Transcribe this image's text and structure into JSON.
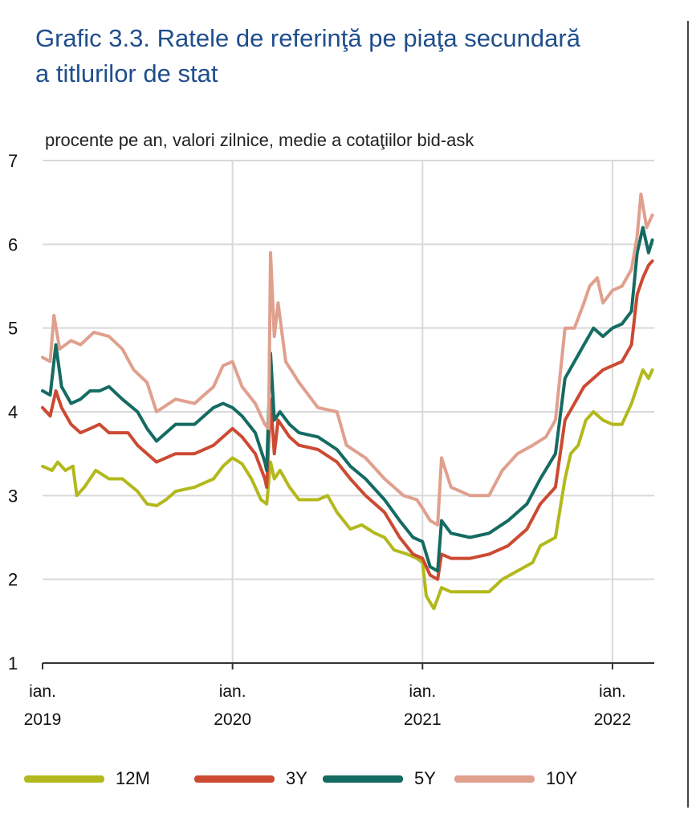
{
  "title_line1": "Grafic 3.3. Ratele de referinţă pe piaţa secundară",
  "title_line2": "a titlurilor de stat",
  "chart_data": {
    "type": "line",
    "subtitle": "procente pe an, valori zilnice, medie a cotaţiilor bid-ask",
    "ylim": [
      1,
      7
    ],
    "yticks": [
      "1",
      "2",
      "3",
      "4",
      "5",
      "6",
      "7"
    ],
    "xlim": [
      2019.0,
      2022.22
    ],
    "xticks": [
      {
        "x": 2019.0,
        "line1": "ian.",
        "line2": "2019"
      },
      {
        "x": 2020.0,
        "line1": "ian.",
        "line2": "2020"
      },
      {
        "x": 2021.0,
        "line1": "ian.",
        "line2": "2021"
      },
      {
        "x": 2022.0,
        "line1": "ian.",
        "line2": "2022"
      }
    ],
    "grid": true,
    "legend_position": "bottom",
    "series": [
      {
        "name": "12M",
        "color": "#b3b91c",
        "points": [
          [
            2019.0,
            3.35
          ],
          [
            2019.05,
            3.3
          ],
          [
            2019.08,
            3.4
          ],
          [
            2019.12,
            3.3
          ],
          [
            2019.16,
            3.35
          ],
          [
            2019.18,
            3.0
          ],
          [
            2019.22,
            3.1
          ],
          [
            2019.28,
            3.3
          ],
          [
            2019.35,
            3.2
          ],
          [
            2019.42,
            3.2
          ],
          [
            2019.5,
            3.05
          ],
          [
            2019.55,
            2.9
          ],
          [
            2019.6,
            2.88
          ],
          [
            2019.65,
            2.95
          ],
          [
            2019.7,
            3.05
          ],
          [
            2019.8,
            3.1
          ],
          [
            2019.9,
            3.2
          ],
          [
            2019.95,
            3.35
          ],
          [
            2020.0,
            3.45
          ],
          [
            2020.05,
            3.38
          ],
          [
            2020.1,
            3.2
          ],
          [
            2020.15,
            2.95
          ],
          [
            2020.18,
            2.9
          ],
          [
            2020.2,
            3.4
          ],
          [
            2020.22,
            3.2
          ],
          [
            2020.25,
            3.3
          ],
          [
            2020.3,
            3.1
          ],
          [
            2020.35,
            2.95
          ],
          [
            2020.45,
            2.95
          ],
          [
            2020.5,
            3.0
          ],
          [
            2020.55,
            2.8
          ],
          [
            2020.62,
            2.6
          ],
          [
            2020.68,
            2.65
          ],
          [
            2020.75,
            2.55
          ],
          [
            2020.8,
            2.5
          ],
          [
            2020.85,
            2.35
          ],
          [
            2020.92,
            2.3
          ],
          [
            2020.97,
            2.25
          ],
          [
            2021.0,
            2.2
          ],
          [
            2021.02,
            1.8
          ],
          [
            2021.06,
            1.65
          ],
          [
            2021.1,
            1.9
          ],
          [
            2021.15,
            1.85
          ],
          [
            2021.25,
            1.85
          ],
          [
            2021.35,
            1.85
          ],
          [
            2021.42,
            2.0
          ],
          [
            2021.5,
            2.1
          ],
          [
            2021.58,
            2.2
          ],
          [
            2021.62,
            2.4
          ],
          [
            2021.7,
            2.5
          ],
          [
            2021.75,
            3.2
          ],
          [
            2021.78,
            3.5
          ],
          [
            2021.82,
            3.6
          ],
          [
            2021.86,
            3.9
          ],
          [
            2021.9,
            4.0
          ],
          [
            2021.95,
            3.9
          ],
          [
            2022.0,
            3.85
          ],
          [
            2022.05,
            3.85
          ],
          [
            2022.1,
            4.1
          ],
          [
            2022.13,
            4.3
          ],
          [
            2022.16,
            4.5
          ],
          [
            2022.19,
            4.4
          ],
          [
            2022.21,
            4.5
          ]
        ]
      },
      {
        "name": "3Y",
        "color": "#cc4a32",
        "points": [
          [
            2019.0,
            4.05
          ],
          [
            2019.04,
            3.95
          ],
          [
            2019.07,
            4.25
          ],
          [
            2019.1,
            4.05
          ],
          [
            2019.15,
            3.85
          ],
          [
            2019.2,
            3.75
          ],
          [
            2019.25,
            3.8
          ],
          [
            2019.3,
            3.85
          ],
          [
            2019.35,
            3.75
          ],
          [
            2019.45,
            3.75
          ],
          [
            2019.5,
            3.6
          ],
          [
            2019.55,
            3.5
          ],
          [
            2019.6,
            3.4
          ],
          [
            2019.7,
            3.5
          ],
          [
            2019.8,
            3.5
          ],
          [
            2019.9,
            3.6
          ],
          [
            2019.95,
            3.7
          ],
          [
            2020.0,
            3.8
          ],
          [
            2020.05,
            3.7
          ],
          [
            2020.12,
            3.5
          ],
          [
            2020.17,
            3.2
          ],
          [
            2020.18,
            3.1
          ],
          [
            2020.2,
            4.15
          ],
          [
            2020.22,
            3.5
          ],
          [
            2020.24,
            3.9
          ],
          [
            2020.3,
            3.7
          ],
          [
            2020.35,
            3.6
          ],
          [
            2020.45,
            3.55
          ],
          [
            2020.55,
            3.4
          ],
          [
            2020.62,
            3.2
          ],
          [
            2020.7,
            3.0
          ],
          [
            2020.8,
            2.8
          ],
          [
            2020.88,
            2.5
          ],
          [
            2020.95,
            2.3
          ],
          [
            2021.0,
            2.25
          ],
          [
            2021.04,
            2.05
          ],
          [
            2021.08,
            2.0
          ],
          [
            2021.1,
            2.3
          ],
          [
            2021.15,
            2.25
          ],
          [
            2021.25,
            2.25
          ],
          [
            2021.35,
            2.3
          ],
          [
            2021.45,
            2.4
          ],
          [
            2021.55,
            2.6
          ],
          [
            2021.62,
            2.9
          ],
          [
            2021.7,
            3.1
          ],
          [
            2021.75,
            3.9
          ],
          [
            2021.8,
            4.1
          ],
          [
            2021.85,
            4.3
          ],
          [
            2021.9,
            4.4
          ],
          [
            2021.95,
            4.5
          ],
          [
            2022.0,
            4.55
          ],
          [
            2022.05,
            4.6
          ],
          [
            2022.1,
            4.8
          ],
          [
            2022.13,
            5.4
          ],
          [
            2022.16,
            5.6
          ],
          [
            2022.19,
            5.75
          ],
          [
            2022.21,
            5.8
          ]
        ]
      },
      {
        "name": "5Y",
        "color": "#146b62",
        "points": [
          [
            2019.0,
            4.25
          ],
          [
            2019.04,
            4.2
          ],
          [
            2019.07,
            4.8
          ],
          [
            2019.1,
            4.3
          ],
          [
            2019.15,
            4.1
          ],
          [
            2019.2,
            4.15
          ],
          [
            2019.25,
            4.25
          ],
          [
            2019.3,
            4.25
          ],
          [
            2019.35,
            4.3
          ],
          [
            2019.42,
            4.15
          ],
          [
            2019.5,
            4.0
          ],
          [
            2019.55,
            3.8
          ],
          [
            2019.6,
            3.65
          ],
          [
            2019.7,
            3.85
          ],
          [
            2019.8,
            3.85
          ],
          [
            2019.9,
            4.05
          ],
          [
            2019.95,
            4.1
          ],
          [
            2020.0,
            4.05
          ],
          [
            2020.05,
            3.95
          ],
          [
            2020.12,
            3.75
          ],
          [
            2020.17,
            3.4
          ],
          [
            2020.18,
            3.3
          ],
          [
            2020.2,
            4.7
          ],
          [
            2020.22,
            3.9
          ],
          [
            2020.25,
            4.0
          ],
          [
            2020.3,
            3.85
          ],
          [
            2020.35,
            3.75
          ],
          [
            2020.45,
            3.7
          ],
          [
            2020.55,
            3.55
          ],
          [
            2020.62,
            3.35
          ],
          [
            2020.7,
            3.2
          ],
          [
            2020.8,
            2.95
          ],
          [
            2020.88,
            2.7
          ],
          [
            2020.95,
            2.5
          ],
          [
            2021.0,
            2.45
          ],
          [
            2021.04,
            2.15
          ],
          [
            2021.08,
            2.1
          ],
          [
            2021.1,
            2.7
          ],
          [
            2021.15,
            2.55
          ],
          [
            2021.25,
            2.5
          ],
          [
            2021.35,
            2.55
          ],
          [
            2021.45,
            2.7
          ],
          [
            2021.55,
            2.9
          ],
          [
            2021.62,
            3.2
          ],
          [
            2021.7,
            3.5
          ],
          [
            2021.75,
            4.4
          ],
          [
            2021.8,
            4.6
          ],
          [
            2021.85,
            4.8
          ],
          [
            2021.9,
            5.0
          ],
          [
            2021.95,
            4.9
          ],
          [
            2022.0,
            5.0
          ],
          [
            2022.05,
            5.05
          ],
          [
            2022.1,
            5.2
          ],
          [
            2022.13,
            5.9
          ],
          [
            2022.16,
            6.2
          ],
          [
            2022.19,
            5.9
          ],
          [
            2022.21,
            6.05
          ]
        ]
      },
      {
        "name": "10Y",
        "color": "#e0a08e",
        "points": [
          [
            2019.0,
            4.65
          ],
          [
            2019.04,
            4.6
          ],
          [
            2019.06,
            5.15
          ],
          [
            2019.09,
            4.75
          ],
          [
            2019.15,
            4.85
          ],
          [
            2019.2,
            4.8
          ],
          [
            2019.27,
            4.95
          ],
          [
            2019.35,
            4.9
          ],
          [
            2019.42,
            4.75
          ],
          [
            2019.48,
            4.5
          ],
          [
            2019.55,
            4.35
          ],
          [
            2019.6,
            4.0
          ],
          [
            2019.7,
            4.15
          ],
          [
            2019.8,
            4.1
          ],
          [
            2019.9,
            4.3
          ],
          [
            2019.95,
            4.55
          ],
          [
            2020.0,
            4.6
          ],
          [
            2020.05,
            4.3
          ],
          [
            2020.12,
            4.1
          ],
          [
            2020.17,
            3.85
          ],
          [
            2020.19,
            3.8
          ],
          [
            2020.2,
            5.9
          ],
          [
            2020.22,
            4.9
          ],
          [
            2020.24,
            5.3
          ],
          [
            2020.28,
            4.6
          ],
          [
            2020.35,
            4.35
          ],
          [
            2020.45,
            4.05
          ],
          [
            2020.55,
            4.0
          ],
          [
            2020.6,
            3.6
          ],
          [
            2020.7,
            3.45
          ],
          [
            2020.8,
            3.2
          ],
          [
            2020.9,
            3.0
          ],
          [
            2020.97,
            2.95
          ],
          [
            2021.0,
            2.85
          ],
          [
            2021.04,
            2.7
          ],
          [
            2021.08,
            2.65
          ],
          [
            2021.1,
            3.45
          ],
          [
            2021.15,
            3.1
          ],
          [
            2021.25,
            3.0
          ],
          [
            2021.35,
            3.0
          ],
          [
            2021.42,
            3.3
          ],
          [
            2021.5,
            3.5
          ],
          [
            2021.58,
            3.6
          ],
          [
            2021.65,
            3.7
          ],
          [
            2021.7,
            3.9
          ],
          [
            2021.75,
            5.0
          ],
          [
            2021.8,
            5.0
          ],
          [
            2021.85,
            5.3
          ],
          [
            2021.88,
            5.5
          ],
          [
            2021.92,
            5.6
          ],
          [
            2021.95,
            5.3
          ],
          [
            2022.0,
            5.45
          ],
          [
            2022.05,
            5.5
          ],
          [
            2022.1,
            5.7
          ],
          [
            2022.13,
            6.1
          ],
          [
            2022.15,
            6.6
          ],
          [
            2022.18,
            6.2
          ],
          [
            2022.21,
            6.35
          ]
        ]
      }
    ]
  }
}
